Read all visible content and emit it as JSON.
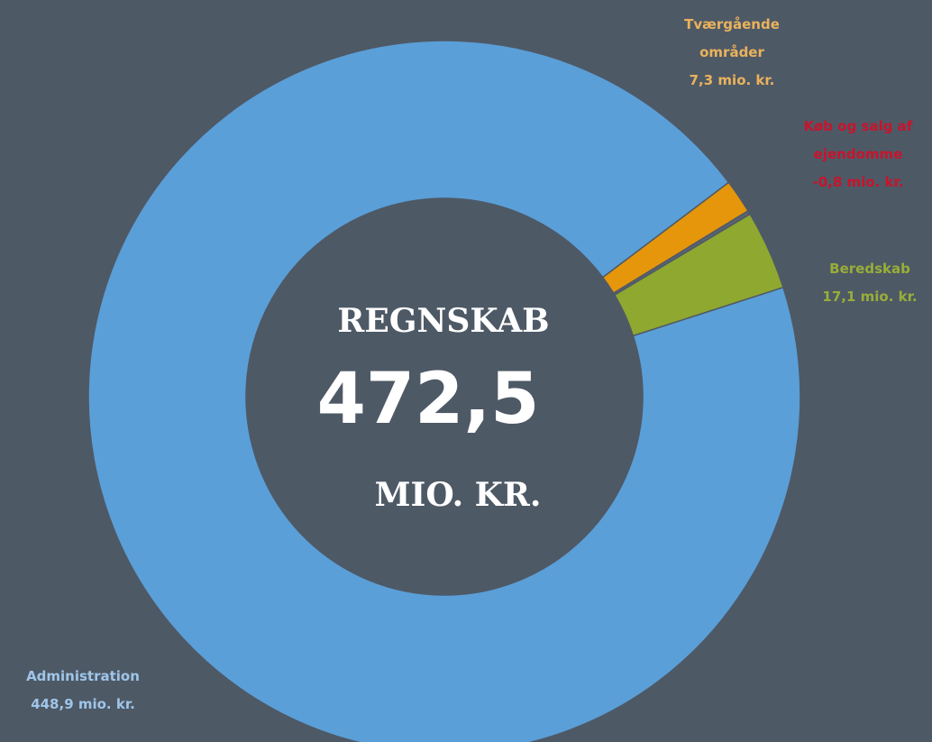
{
  "chart_data": {
    "type": "donut",
    "categories": [
      "Tværgående områder",
      "Køb og salg af ejendomme",
      "Beredskab",
      "Administration"
    ],
    "values": [
      7.3,
      -0.8,
      17.1,
      448.9
    ],
    "value_labels": [
      "7,3 mio. kr.",
      "-0,8 mio. kr.",
      "17,1 mio. kr.",
      "448,9 mio. kr."
    ],
    "colors": [
      "#e6960a",
      "#5b6470",
      "#8fa830",
      "#5a9fd8"
    ],
    "label_colors": [
      "#eab25c",
      "#c8142c",
      "#98ae38",
      "#9fc5e8"
    ],
    "center_title": "REGNSKAB",
    "total": 472.5,
    "total_label": "472,5",
    "center_unit": "MIO. KR."
  }
}
